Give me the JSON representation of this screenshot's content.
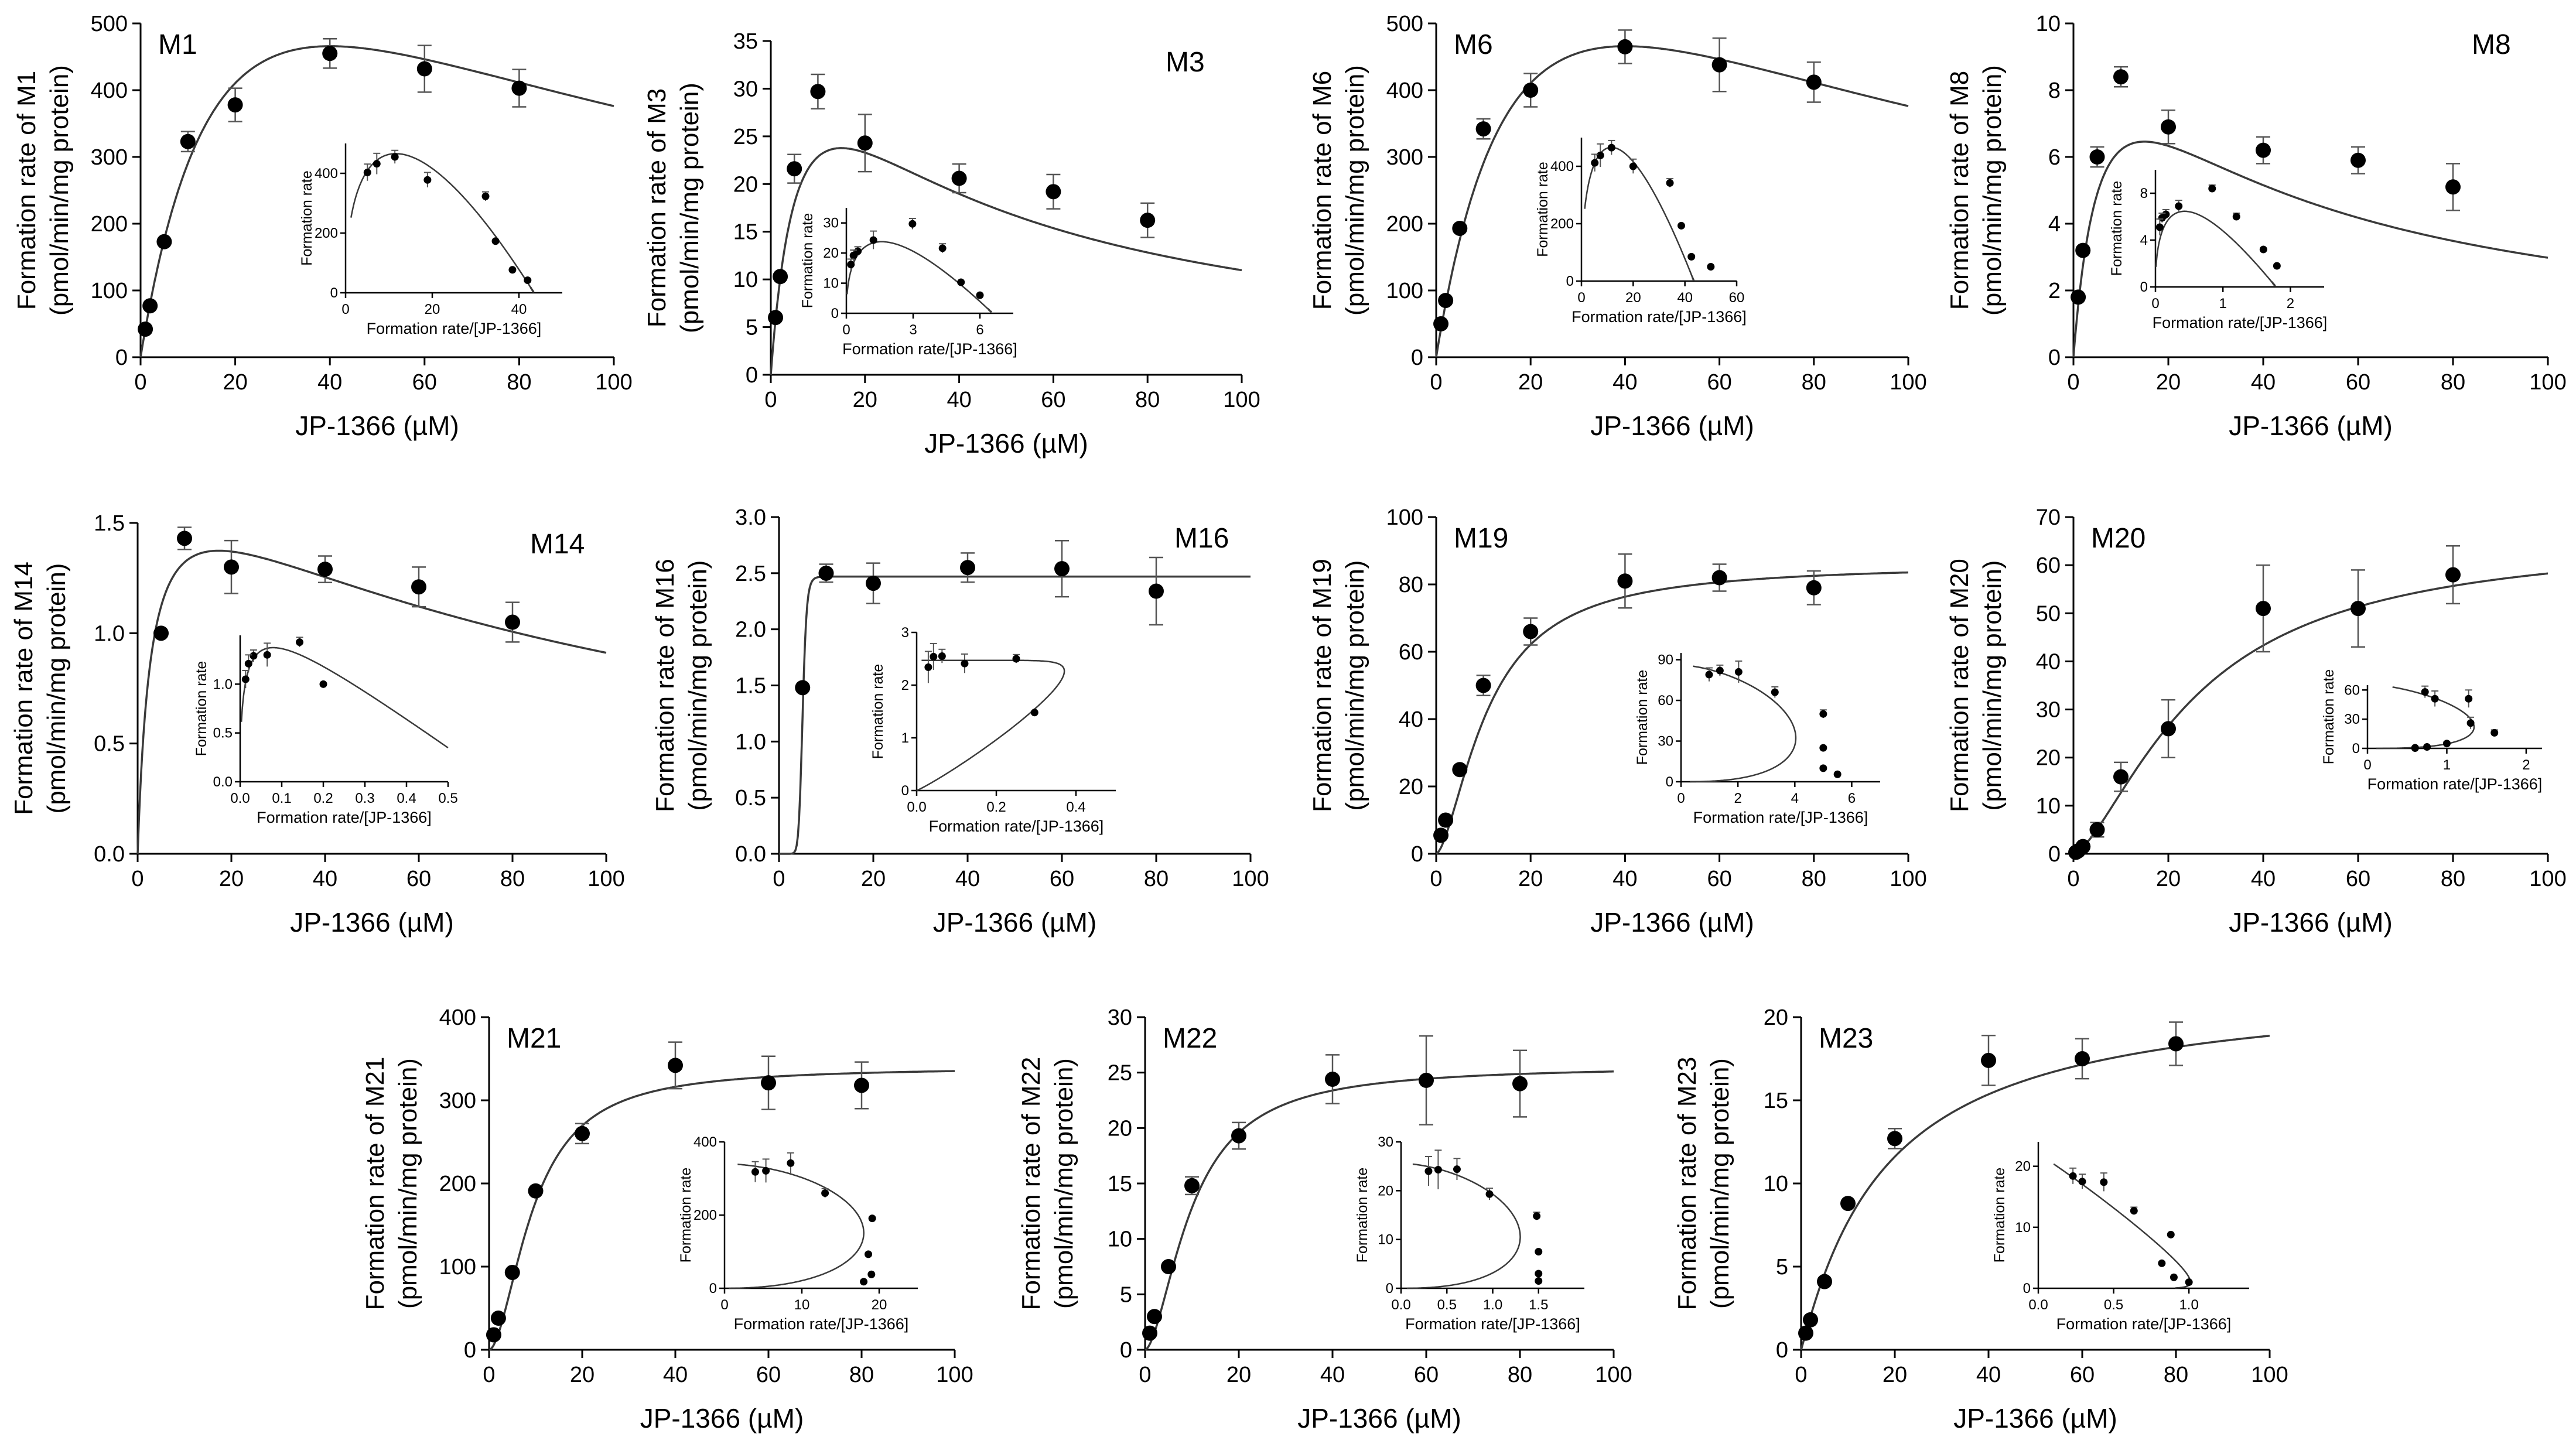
{
  "figure": {
    "description_free": true
  },
  "chart_data": [
    {
      "id": "M1",
      "type": "scatter",
      "title": "M1",
      "title_pos": "left",
      "xlabel": "JP-1366 (µM)",
      "ylabel": "Formation rate of M1",
      "ylabel2": "(pmol/min/mg protein)",
      "xlim": [
        0,
        100
      ],
      "ylim": [
        0,
        500
      ],
      "xticks": [
        0,
        20,
        40,
        60,
        80,
        100
      ],
      "yticks": [
        0,
        100,
        200,
        300,
        400,
        500
      ],
      "ytick_labels": [
        "0",
        "100",
        "200",
        "300",
        "400",
        "500"
      ],
      "x": [
        1,
        2,
        5,
        10,
        20,
        40,
        60,
        80
      ],
      "y": [
        42,
        77,
        173,
        323,
        378,
        455,
        432,
        403
      ],
      "err": [
        0,
        0,
        0,
        15,
        25,
        22,
        35,
        28
      ],
      "fit": {
        "model": "substrate_inhibition",
        "Vmax": 1000,
        "Km": 23,
        "Ki": 70
      },
      "inset": {
        "xlabel": "Formation rate/[JP-1366]",
        "ylabel": "Formation rate",
        "xlim": [
          0,
          50
        ],
        "ylim": [
          0,
          500
        ],
        "xticks": [
          0,
          20,
          40
        ],
        "yticks": [
          0,
          200,
          400
        ],
        "ytick_labels": [
          "0",
          "200",
          "400"
        ],
        "fit_from_parent": true
      }
    },
    {
      "id": "M3",
      "type": "scatter",
      "title": "M3",
      "title_pos": "right",
      "xlabel": "JP-1366 (µM)",
      "ylabel": "Formation rate of M3",
      "ylabel2": "(pmol/min/mg protein)",
      "xlim": [
        0,
        100
      ],
      "ylim": [
        0,
        35
      ],
      "xticks": [
        0,
        20,
        40,
        60,
        80,
        100
      ],
      "yticks": [
        0,
        5,
        10,
        15,
        20,
        25,
        30,
        35
      ],
      "ytick_labels": [
        "0",
        "5",
        "10",
        "15",
        "20",
        "25",
        "30",
        "35"
      ],
      "x": [
        1,
        2,
        5,
        10,
        20,
        40,
        60,
        80
      ],
      "y": [
        6,
        10.3,
        21.6,
        29.7,
        24.3,
        20.6,
        19.2,
        16.2
      ],
      "err": [
        0,
        0,
        1.5,
        1.8,
        3,
        1.5,
        1.8,
        1.8
      ],
      "fit": {
        "model": "substrate_inhibition",
        "Vmax": 46,
        "Km": 7,
        "Ki": 32
      },
      "inset": {
        "xlabel": "Formation rate/[JP-1366]",
        "ylabel": "Formation rate",
        "xlim": [
          0,
          7.5
        ],
        "ylim": [
          0,
          35
        ],
        "xticks": [
          0,
          3,
          6
        ],
        "yticks": [
          0,
          10,
          20,
          30
        ],
        "ytick_labels": [
          "0",
          "10",
          "20",
          "30"
        ],
        "fit_from_parent": true
      }
    },
    {
      "id": "M6",
      "type": "scatter",
      "title": "M6",
      "title_pos": "left",
      "xlabel": "JP-1366 (µM)",
      "ylabel": "Formation rate of M6",
      "ylabel2": "(pmol/min/mg protein)",
      "xlim": [
        0,
        100
      ],
      "ylim": [
        0,
        500
      ],
      "xticks": [
        0,
        20,
        40,
        60,
        80,
        100
      ],
      "yticks": [
        0,
        100,
        200,
        300,
        400,
        500
      ],
      "ytick_labels": [
        "0",
        "100",
        "200",
        "300",
        "400",
        "500"
      ],
      "x": [
        1,
        2,
        5,
        10,
        20,
        40,
        60,
        80
      ],
      "y": [
        50,
        85,
        193,
        342,
        400,
        465,
        438,
        412
      ],
      "err": [
        0,
        0,
        0,
        15,
        25,
        25,
        40,
        30
      ],
      "fit": {
        "model": "substrate_inhibition",
        "Vmax": 1000,
        "Km": 23,
        "Ki": 70
      },
      "inset": {
        "xlabel": "Formation rate/[JP-1366]",
        "ylabel": "Formation rate",
        "xlim": [
          0,
          60
        ],
        "ylim": [
          0,
          500
        ],
        "xticks": [
          0,
          20,
          40,
          60
        ],
        "yticks": [
          0,
          200,
          400
        ],
        "ytick_labels": [
          "0",
          "200",
          "400"
        ],
        "fit_from_parent": true
      }
    },
    {
      "id": "M8",
      "type": "scatter",
      "title": "M8",
      "title_pos": "right",
      "xlabel": "JP-1366 (µM)",
      "ylabel": "Formation rate of M8",
      "ylabel2": "(pmol/min/mg protein)",
      "xlim": [
        0,
        100
      ],
      "ylim": [
        0,
        10
      ],
      "xticks": [
        0,
        20,
        40,
        60,
        80,
        100
      ],
      "yticks": [
        0,
        2,
        4,
        6,
        8,
        10
      ],
      "ytick_labels": [
        "0",
        "2",
        "4",
        "6",
        "8",
        "10"
      ],
      "x": [
        1,
        2,
        5,
        10,
        20,
        40,
        60,
        80
      ],
      "y": [
        1.8,
        3.2,
        6.0,
        8.4,
        6.9,
        6.2,
        5.9,
        5.1
      ],
      "err": [
        0,
        0,
        0.3,
        0.3,
        0.5,
        0.4,
        0.4,
        0.7
      ],
      "fit": {
        "model": "substrate_inhibition",
        "Vmax": 12.5,
        "Km": 7,
        "Ki": 32
      },
      "inset": {
        "xlabel": "Formation rate/[JP-1366]",
        "ylabel": "Formation rate",
        "xlim": [
          0,
          2.5
        ],
        "ylim": [
          0,
          10
        ],
        "xticks": [
          0,
          1,
          2
        ],
        "yticks": [
          0,
          4,
          8
        ],
        "ytick_labels": [
          "0",
          "4",
          "8"
        ],
        "fit_from_parent": true
      }
    },
    {
      "id": "M14",
      "type": "scatter",
      "title": "M14",
      "title_pos": "right",
      "xlabel": "JP-1366 (µM)",
      "ylabel": "Formation rate of M14",
      "ylabel2": "(pmol/min/mg protein)",
      "xlim": [
        0,
        100
      ],
      "ylim": [
        0,
        1.5
      ],
      "xticks": [
        0,
        20,
        40,
        60,
        80,
        100
      ],
      "yticks": [
        0,
        0.5,
        1.0,
        1.5
      ],
      "ytick_labels": [
        "0.0",
        "0.5",
        "1.0",
        "1.5"
      ],
      "x": [
        5,
        10,
        20,
        40,
        60,
        80
      ],
      "y": [
        1.0,
        1.43,
        1.3,
        1.29,
        1.21,
        1.05
      ],
      "err": [
        0,
        0.05,
        0.12,
        0.06,
        0.09,
        0.09
      ],
      "fit": {
        "model": "substrate_inhibition",
        "Vmax": 1.85,
        "Km": 3,
        "Ki": 100
      },
      "inset": {
        "xlabel": "Formation rate/[JP-1366]",
        "ylabel": "Formation rate",
        "xlim": [
          0,
          0.5
        ],
        "ylim": [
          0,
          1.5
        ],
        "xticks": [
          0,
          0.1,
          0.2,
          0.3,
          0.4,
          0.5
        ],
        "yticks": [
          0,
          0.5,
          1.0
        ],
        "ytick_labels": [
          "0.0",
          "0.5",
          "1.0"
        ],
        "xtick_labels": [
          "0.0",
          "0.1",
          "0.2",
          "0.3",
          "0.4",
          "0.5"
        ],
        "fit_from_parent": true
      }
    },
    {
      "id": "M16",
      "type": "scatter",
      "title": "M16",
      "title_pos": "right",
      "xlabel": "JP-1366 (µM)",
      "ylabel": "Formation rate of M16",
      "ylabel2": "(pmol/min/mg protein)",
      "xlim": [
        0,
        100
      ],
      "ylim": [
        0,
        3
      ],
      "xticks": [
        0,
        20,
        40,
        60,
        80,
        100
      ],
      "yticks": [
        0,
        0.5,
        1.0,
        1.5,
        2.0,
        2.5,
        3.0
      ],
      "ytick_labels": [
        "0.0",
        "0.5",
        "1.0",
        "1.5",
        "2.0",
        "2.5",
        "3.0"
      ],
      "x": [
        5,
        10,
        20,
        40,
        60,
        80
      ],
      "y": [
        1.48,
        2.5,
        2.41,
        2.55,
        2.54,
        2.34
      ],
      "err": [
        0,
        0.08,
        0.18,
        0.13,
        0.25,
        0.3
      ],
      "fit": {
        "model": "hill",
        "Vmax": 2.47,
        "S50": 5,
        "n": 12
      },
      "inset": {
        "xlabel": "Formation rate/[JP-1366]",
        "ylabel": "Formation rate",
        "xlim": [
          0,
          0.5
        ],
        "ylim": [
          0,
          3
        ],
        "xticks": [
          0,
          0.2,
          0.4
        ],
        "yticks": [
          0,
          1,
          2,
          3
        ],
        "ytick_labels": [
          "0",
          "1",
          "2",
          "3"
        ],
        "xtick_labels": [
          "0.0",
          "0.2",
          "0.4"
        ],
        "fit_from_parent": true
      }
    },
    {
      "id": "M19",
      "type": "scatter",
      "title": "M19",
      "title_pos": "left",
      "xlabel": "JP-1366 (µM)",
      "ylabel": "Formation rate of M19",
      "ylabel2": "(pmol/min/mg protein)",
      "xlim": [
        0,
        100
      ],
      "ylim": [
        0,
        100
      ],
      "xticks": [
        0,
        20,
        40,
        60,
        80,
        100
      ],
      "yticks": [
        0,
        20,
        40,
        60,
        80,
        100
      ],
      "ytick_labels": [
        "0",
        "20",
        "40",
        "60",
        "80",
        "100"
      ],
      "x": [
        1,
        2,
        5,
        10,
        20,
        40,
        60,
        80
      ],
      "y": [
        5.5,
        10,
        25,
        50,
        66,
        81,
        82,
        79
      ],
      "err": [
        0,
        0,
        0,
        3,
        4,
        8,
        4,
        5
      ],
      "fit": {
        "model": "hill",
        "Vmax": 86,
        "S50": 11,
        "n": 1.6
      },
      "inset": {
        "xlabel": "Formation rate/[JP-1366]",
        "ylabel": "Formation rate",
        "xlim": [
          0,
          7
        ],
        "ylim": [
          0,
          95
        ],
        "xticks": [
          0,
          2,
          4,
          6
        ],
        "yticks": [
          0,
          30,
          60,
          90
        ],
        "ytick_labels": [
          "0",
          "30",
          "60",
          "90"
        ],
        "fit_from_parent": true
      }
    },
    {
      "id": "M20",
      "type": "scatter",
      "title": "M20",
      "title_pos": "left",
      "xlabel": "JP-1366 (µM)",
      "ylabel": "Formation rate of M20",
      "ylabel2": "(pmol/min/mg protein)",
      "xlim": [
        0,
        100
      ],
      "ylim": [
        0,
        70
      ],
      "xticks": [
        0,
        20,
        40,
        60,
        80,
        100
      ],
      "yticks": [
        0,
        10,
        20,
        30,
        40,
        50,
        60,
        70
      ],
      "ytick_labels": [
        "0",
        "10",
        "20",
        "30",
        "40",
        "50",
        "60",
        "70"
      ],
      "x": [
        0.5,
        1,
        2,
        5,
        10,
        20,
        40,
        60,
        80
      ],
      "y": [
        0.3,
        0.6,
        1.5,
        5,
        16,
        26,
        51,
        51,
        58
      ],
      "err": [
        0,
        0,
        0,
        1.5,
        3,
        6,
        9,
        8,
        6
      ],
      "fit": {
        "model": "hill",
        "Vmax": 66,
        "S50": 26,
        "n": 1.5
      },
      "inset": {
        "xlabel": "Formation rate/[JP-1366]",
        "ylabel": "Formation rate",
        "xlim": [
          0,
          2.2
        ],
        "ylim": [
          0,
          65
        ],
        "xticks": [
          0,
          1,
          2
        ],
        "yticks": [
          0,
          30,
          60
        ],
        "ytick_labels": [
          "0",
          "30",
          "60"
        ],
        "fit_from_parent": true
      }
    },
    {
      "id": "M21",
      "type": "scatter",
      "title": "M21",
      "title_pos": "left",
      "xlabel": "JP-1366 (µM)",
      "ylabel": "Formation rate of M21",
      "ylabel2": "(pmol/min/mg protein)",
      "xlim": [
        0,
        100
      ],
      "ylim": [
        0,
        400
      ],
      "xticks": [
        0,
        20,
        40,
        60,
        80,
        100
      ],
      "yticks": [
        0,
        100,
        200,
        300,
        400
      ],
      "ytick_labels": [
        "0",
        "100",
        "200",
        "300",
        "400"
      ],
      "x": [
        1,
        2,
        5,
        10,
        20,
        40,
        60,
        80
      ],
      "y": [
        18,
        38,
        93,
        191,
        260,
        342,
        321,
        318
      ],
      "err": [
        0,
        0,
        0,
        0,
        12,
        28,
        32,
        28
      ],
      "fit": {
        "model": "hill",
        "Vmax": 340,
        "S50": 9.5,
        "n": 1.8
      },
      "inset": {
        "xlabel": "Formation rate/[JP-1366]",
        "ylabel": "Formation rate",
        "xlim": [
          0,
          25
        ],
        "ylim": [
          0,
          400
        ],
        "xticks": [
          0,
          10,
          20
        ],
        "yticks": [
          0,
          200,
          400
        ],
        "ytick_labels": [
          "0",
          "200",
          "400"
        ],
        "fit_from_parent": true
      }
    },
    {
      "id": "M22",
      "type": "scatter",
      "title": "M22",
      "title_pos": "left",
      "xlabel": "JP-1366 (µM)",
      "ylabel": "Formation rate of M22",
      "ylabel2": "(pmol/min/mg protein)",
      "xlim": [
        0,
        100
      ],
      "ylim": [
        0,
        30
      ],
      "xticks": [
        0,
        20,
        40,
        60,
        80,
        100
      ],
      "yticks": [
        0,
        5,
        10,
        15,
        20,
        25,
        30
      ],
      "ytick_labels": [
        "0",
        "5",
        "10",
        "15",
        "20",
        "25",
        "30"
      ],
      "x": [
        1,
        2,
        5,
        10,
        20,
        40,
        60,
        80
      ],
      "y": [
        1.5,
        3,
        7.5,
        14.8,
        19.3,
        24.4,
        24.3,
        24
      ],
      "err": [
        0,
        0,
        0,
        0.8,
        1.2,
        2.2,
        4,
        3
      ],
      "fit": {
        "model": "hill",
        "Vmax": 25.6,
        "S50": 10,
        "n": 1.7
      },
      "inset": {
        "xlabel": "Formation rate/[JP-1366]",
        "ylabel": "Formation rate",
        "xlim": [
          0,
          2
        ],
        "ylim": [
          0,
          30
        ],
        "xticks": [
          0,
          0.5,
          1.0,
          1.5
        ],
        "yticks": [
          0,
          10,
          20,
          30
        ],
        "ytick_labels": [
          "0",
          "10",
          "20",
          "30"
        ],
        "xtick_labels": [
          "0.0",
          "0.5",
          "1.0",
          "1.5"
        ],
        "fit_from_parent": true
      }
    },
    {
      "id": "M23",
      "type": "scatter",
      "title": "M23",
      "title_pos": "left",
      "xlabel": "JP-1366 (µM)",
      "ylabel": "Formation rate of M23",
      "ylabel2": "(pmol/min/mg protein)",
      "xlim": [
        0,
        100
      ],
      "ylim": [
        0,
        20
      ],
      "xticks": [
        0,
        20,
        40,
        60,
        80,
        100
      ],
      "yticks": [
        0,
        5,
        10,
        15,
        20
      ],
      "ytick_labels": [
        "0",
        "5",
        "10",
        "15",
        "20"
      ],
      "x": [
        1,
        2,
        5,
        10,
        20,
        40,
        60,
        80
      ],
      "y": [
        1,
        1.8,
        4.1,
        8.8,
        12.7,
        17.4,
        17.5,
        18.4
      ],
      "err": [
        0,
        0,
        0,
        0,
        0.6,
        1.5,
        1.2,
        1.3
      ],
      "fit": {
        "model": "hill",
        "Vmax": 22,
        "S50": 18,
        "n": 1.05
      },
      "inset": {
        "xlabel": "Formation rate/[JP-1366]",
        "ylabel": "Formation rate",
        "xlim": [
          0,
          1.4
        ],
        "ylim": [
          0,
          24
        ],
        "xticks": [
          0,
          0.5,
          1.0
        ],
        "yticks": [
          0,
          10,
          20
        ],
        "ytick_labels": [
          "0",
          "10",
          "20"
        ],
        "xtick_labels": [
          "0.0",
          "0.5",
          "1.0"
        ],
        "fit_from_parent": true
      }
    }
  ]
}
